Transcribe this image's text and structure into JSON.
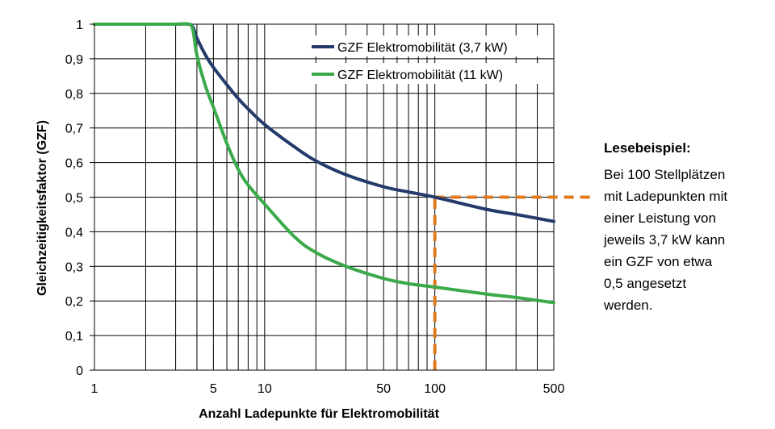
{
  "chart_data": {
    "type": "line",
    "x_scale": "log",
    "xlim": [
      1,
      500
    ],
    "ylim": [
      0,
      1
    ],
    "xlabel": "Anzahl Ladepunkte für Elektromobilität",
    "ylabel": "Gleichzeitigkeitsfaktor (GZF)",
    "x_ticks": [
      {
        "value": 1,
        "label": "1"
      },
      {
        "value": 5,
        "label": "5"
      },
      {
        "value": 10,
        "label": "10"
      },
      {
        "value": 50,
        "label": "50"
      },
      {
        "value": 100,
        "label": "100"
      },
      {
        "value": 500,
        "label": "500"
      }
    ],
    "y_ticks": [
      {
        "value": 0,
        "label": "0"
      },
      {
        "value": 0.1,
        "label": "0,1"
      },
      {
        "value": 0.2,
        "label": "0,2"
      },
      {
        "value": 0.3,
        "label": "0,3"
      },
      {
        "value": 0.4,
        "label": "0,4"
      },
      {
        "value": 0.5,
        "label": "0,5"
      },
      {
        "value": 0.6,
        "label": "0,6"
      },
      {
        "value": 0.7,
        "label": "0,7"
      },
      {
        "value": 0.8,
        "label": "0,8"
      },
      {
        "value": 0.9,
        "label": "0,9"
      },
      {
        "value": 1,
        "label": "1"
      }
    ],
    "grid": {
      "x": "log-minor",
      "y": "major"
    },
    "legend_position": "top-right",
    "series": [
      {
        "name": "GZF Elektromobilität (3,7 kW)",
        "color": "#243a6b",
        "x": [
          1,
          2,
          3,
          3.6,
          3.8,
          4,
          4.5,
          5,
          6,
          7,
          8,
          10,
          15,
          20,
          30,
          50,
          70,
          100,
          200,
          300,
          500
        ],
        "y": [
          1,
          1,
          1,
          1,
          0.99,
          0.96,
          0.91,
          0.875,
          0.825,
          0.785,
          0.755,
          0.71,
          0.645,
          0.605,
          0.565,
          0.53,
          0.515,
          0.5,
          0.465,
          0.45,
          0.43
        ]
      },
      {
        "name": "GZF Elektromobilität (11 kW)",
        "color": "#3aaa4a",
        "x": [
          1,
          2,
          3,
          3.6,
          3.8,
          4,
          4.5,
          5,
          6,
          7,
          8,
          10,
          15,
          20,
          30,
          50,
          70,
          100,
          200,
          300,
          500
        ],
        "y": [
          1,
          1,
          1,
          1,
          0.98,
          0.91,
          0.82,
          0.76,
          0.655,
          0.58,
          0.535,
          0.48,
          0.385,
          0.34,
          0.3,
          0.265,
          0.25,
          0.24,
          0.22,
          0.21,
          0.195
        ]
      }
    ],
    "annotation": {
      "x": 100,
      "y": 0.5,
      "color": "#e07a1c",
      "style": "dashed"
    }
  },
  "note": {
    "title": "Lesebeispiel:",
    "lines": [
      "Bei 100 Stellplätzen",
      "mit Ladepunkten  mit",
      "einer Leistung von",
      "jeweils 3,7 kW kann",
      "ein GZF von etwa",
      "0,5 angesetzt",
      "werden."
    ]
  }
}
